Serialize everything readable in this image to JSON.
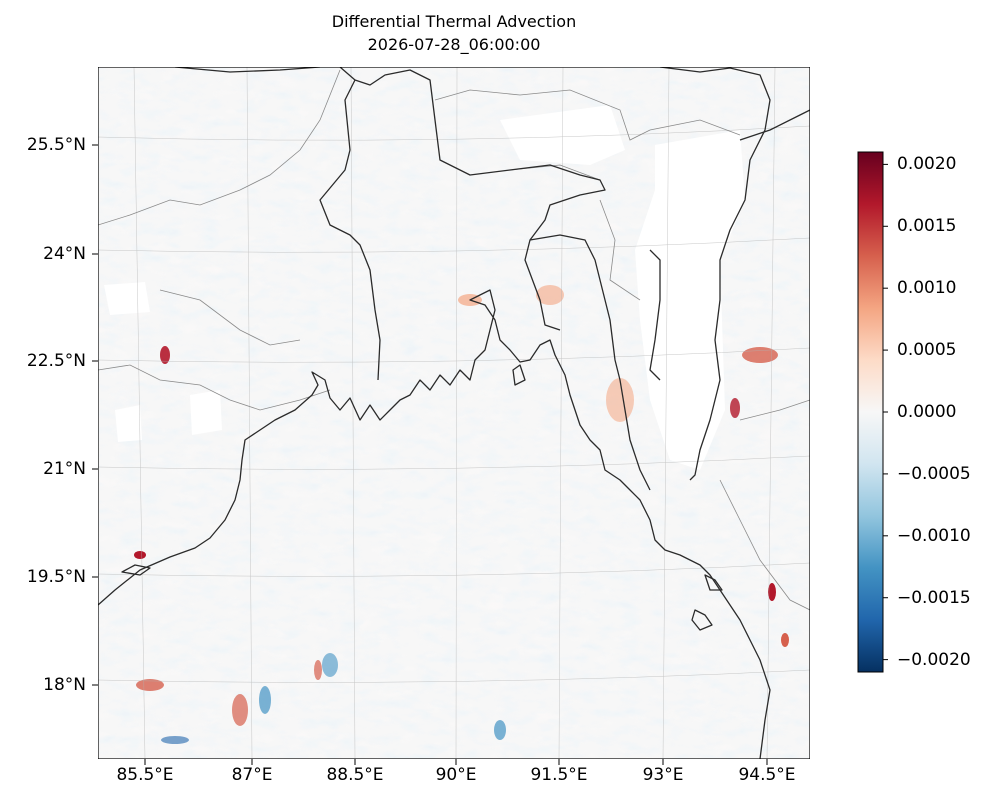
{
  "figure": {
    "title": "Differential Thermal Advection",
    "subtitle": "2026-07-28_06:00:00"
  },
  "map": {
    "projection": "lambert-conformal",
    "lat_labels": [
      "25.5°N",
      "24°N",
      "22.5°N",
      "21°N",
      "19.5°N",
      "18°N"
    ],
    "lon_labels": [
      "85.5°E",
      "87°E",
      "88.5°E",
      "90°E",
      "91.5°E",
      "93°E",
      "94.5°E"
    ],
    "extent": {
      "lon": [
        84.9,
        94.9
      ],
      "lat": [
        16.9,
        26.4
      ]
    },
    "gridlines": true,
    "features": [
      "coastline",
      "country-borders",
      "state-borders",
      "field-shading"
    ]
  },
  "colorbar": {
    "colormap": "RdBu_r",
    "min": -0.0021,
    "max": 0.0021,
    "tick_labels": [
      "0.0020",
      "0.0015",
      "0.0010",
      "0.0005",
      "0.0000",
      "−0.0005",
      "−0.0010",
      "−0.0015",
      "−0.0020"
    ],
    "tick_values": [
      0.002,
      0.0015,
      0.001,
      0.0005,
      0,
      -0.0005,
      -0.001,
      -0.0015,
      -0.002
    ],
    "colors": [
      "#67001f",
      "#b2182b",
      "#d6604d",
      "#f4a582",
      "#fddbc7",
      "#f7f7f7",
      "#d1e5f0",
      "#92c5de",
      "#4393c3",
      "#2166ac",
      "#053061"
    ]
  }
}
